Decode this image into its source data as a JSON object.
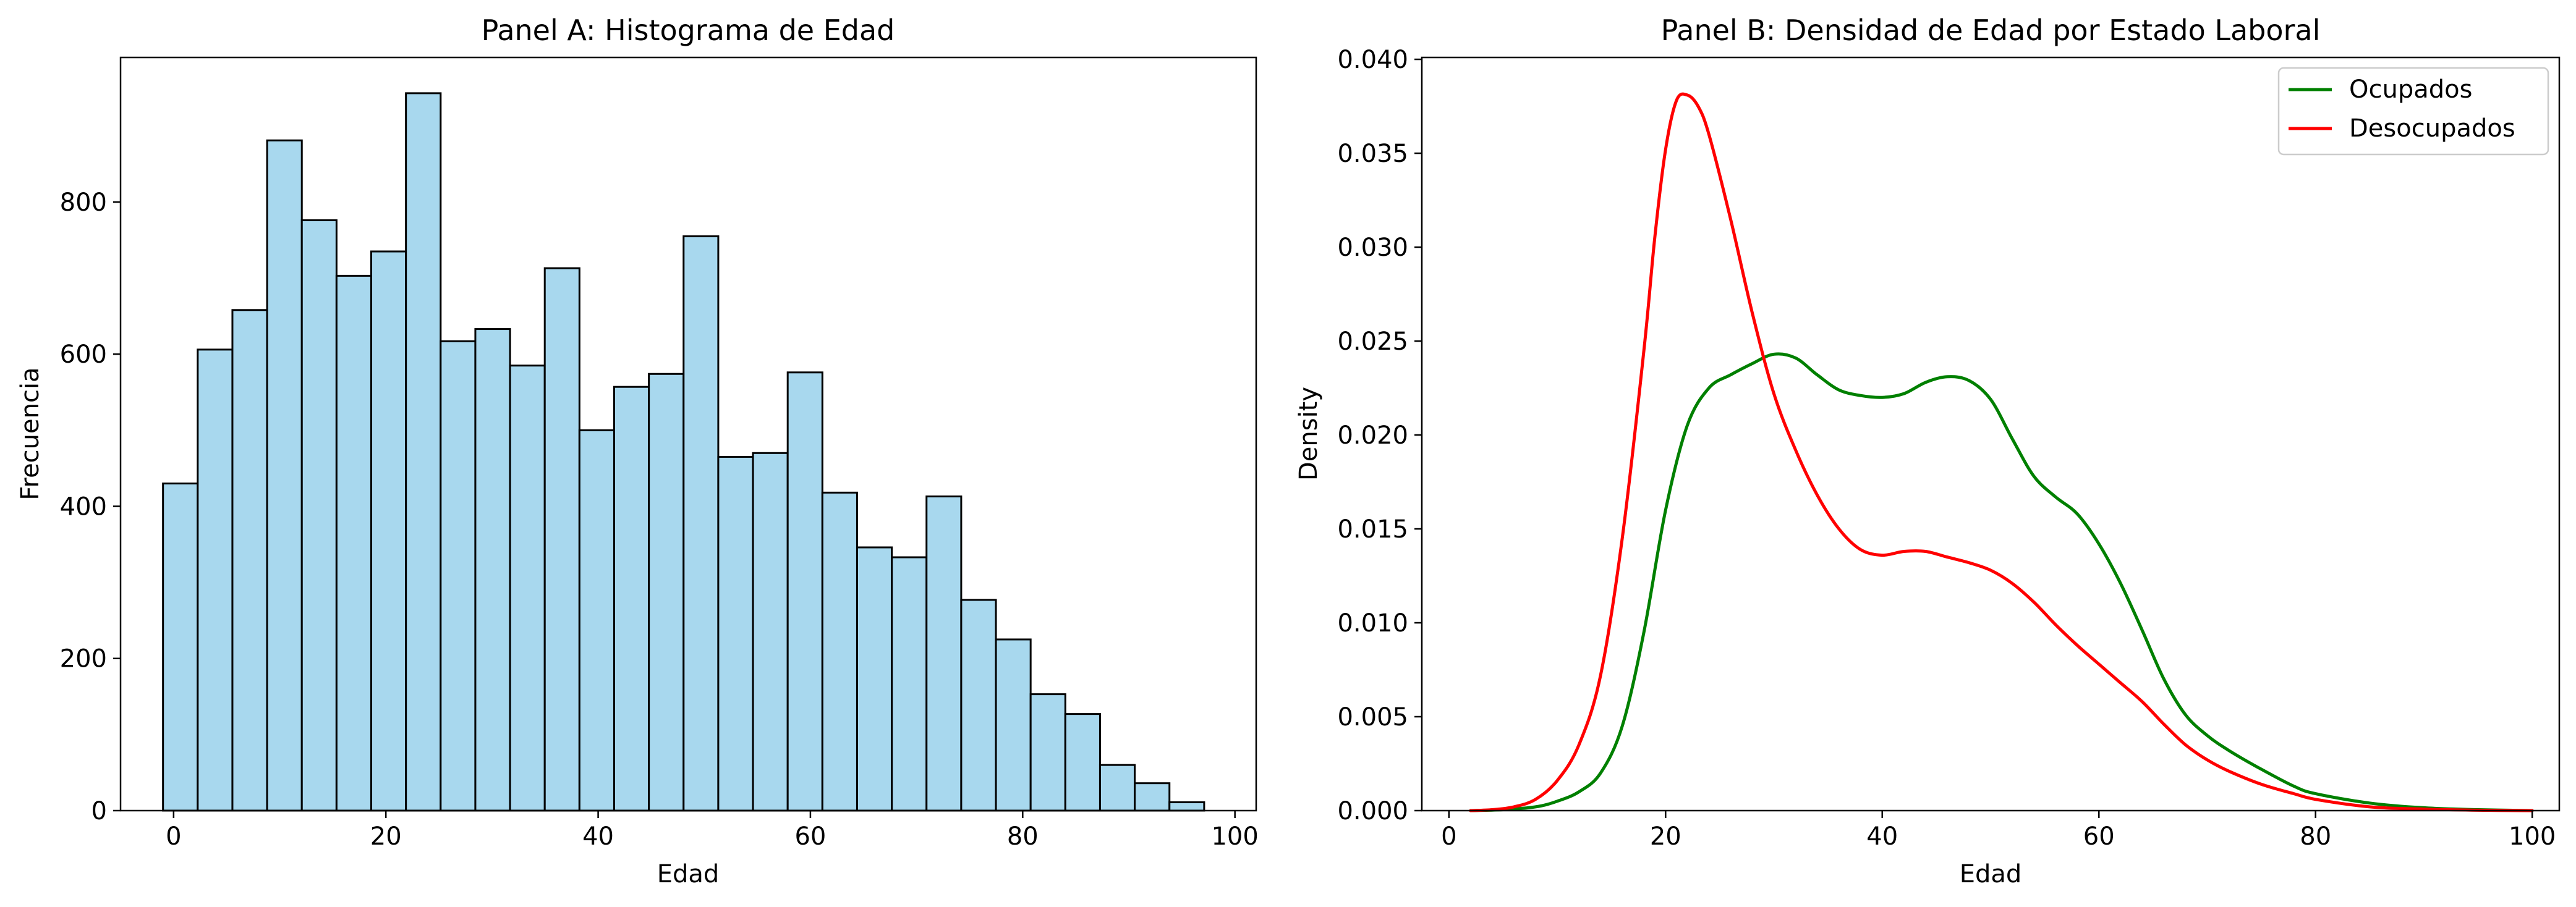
{
  "chart_data": [
    {
      "type": "bar",
      "title": "Panel A: Histograma de Edad",
      "xlabel": "Edad",
      "ylabel": "Frecuencia",
      "xlim": [
        -5,
        102
      ],
      "ylim": [
        0,
        990
      ],
      "xticks": [
        0,
        20,
        40,
        60,
        80,
        100
      ],
      "yticks": [
        0,
        200,
        400,
        600,
        800
      ],
      "grid": false,
      "bin_start": -1,
      "bin_width": 3.27,
      "bar_color": "#a8d8ee",
      "edge_color": "#000000",
      "values": [
        430,
        606,
        658,
        881,
        776,
        703,
        735,
        943,
        617,
        633,
        585,
        713,
        500,
        557,
        574,
        755,
        465,
        470,
        576,
        418,
        346,
        333,
        413,
        277,
        225,
        153,
        127,
        60,
        36,
        11
      ]
    },
    {
      "type": "line",
      "title": "Panel B: Densidad de Edad por Estado Laboral",
      "xlabel": "Edad",
      "ylabel": "Density",
      "xlim": [
        -2.5,
        102.5
      ],
      "ylim": [
        0,
        0.0401
      ],
      "xticks": [
        0,
        20,
        40,
        60,
        80,
        100
      ],
      "yticks": [
        "0.000",
        "0.005",
        "0.010",
        "0.015",
        "0.020",
        "0.025",
        "0.030",
        "0.035",
        "0.040"
      ],
      "grid": false,
      "legend_position": "top-right",
      "series": [
        {
          "name": "Ocupados",
          "color": "#008000",
          "points": [
            [
              2,
              0.0
            ],
            [
              5,
              5e-05
            ],
            [
              8,
              0.0002
            ],
            [
              10,
              0.0005
            ],
            [
              12,
              0.001
            ],
            [
              14,
              0.002
            ],
            [
              16,
              0.0045
            ],
            [
              18,
              0.0095
            ],
            [
              20,
              0.016
            ],
            [
              22,
              0.0205
            ],
            [
              24,
              0.0225
            ],
            [
              26,
              0.0232
            ],
            [
              28,
              0.0238
            ],
            [
              30,
              0.0243
            ],
            [
              32,
              0.0241
            ],
            [
              34,
              0.0232
            ],
            [
              36,
              0.0224
            ],
            [
              38,
              0.0221
            ],
            [
              40,
              0.022
            ],
            [
              42,
              0.0222
            ],
            [
              44,
              0.0228
            ],
            [
              46,
              0.0231
            ],
            [
              48,
              0.0229
            ],
            [
              50,
              0.0219
            ],
            [
              52,
              0.0198
            ],
            [
              54,
              0.0178
            ],
            [
              56,
              0.0167
            ],
            [
              58,
              0.0158
            ],
            [
              60,
              0.0142
            ],
            [
              62,
              0.0121
            ],
            [
              64,
              0.0096
            ],
            [
              66,
              0.007
            ],
            [
              68,
              0.0051
            ],
            [
              70,
              0.004
            ],
            [
              72,
              0.0032
            ],
            [
              75,
              0.0022
            ],
            [
              78,
              0.0013
            ],
            [
              80,
              0.0009
            ],
            [
              85,
              0.0004
            ],
            [
              90,
              0.00015
            ],
            [
              95,
              5e-05
            ],
            [
              100,
              0.0
            ]
          ]
        },
        {
          "name": "Desocupados",
          "color": "#ff0000",
          "points": [
            [
              2,
              0.0
            ],
            [
              4,
              5e-05
            ],
            [
              6,
              0.0002
            ],
            [
              8,
              0.0006
            ],
            [
              10,
              0.0016
            ],
            [
              12,
              0.0035
            ],
            [
              14,
              0.0072
            ],
            [
              16,
              0.0145
            ],
            [
              18,
              0.0245
            ],
            [
              19,
              0.0305
            ],
            [
              20,
              0.0352
            ],
            [
              21,
              0.0378
            ],
            [
              22,
              0.0381
            ],
            [
              23,
              0.0375
            ],
            [
              24,
              0.036
            ],
            [
              26,
              0.0315
            ],
            [
              28,
              0.0265
            ],
            [
              30,
              0.0222
            ],
            [
              32,
              0.0192
            ],
            [
              34,
              0.0168
            ],
            [
              36,
              0.015
            ],
            [
              38,
              0.0139
            ],
            [
              40,
              0.0136
            ],
            [
              42,
              0.0138
            ],
            [
              44,
              0.0138
            ],
            [
              46,
              0.0135
            ],
            [
              48,
              0.0132
            ],
            [
              50,
              0.0128
            ],
            [
              52,
              0.0121
            ],
            [
              54,
              0.0111
            ],
            [
              56,
              0.0099
            ],
            [
              58,
              0.0088
            ],
            [
              60,
              0.0078
            ],
            [
              62,
              0.0068
            ],
            [
              64,
              0.0058
            ],
            [
              66,
              0.0046
            ],
            [
              68,
              0.0035
            ],
            [
              70,
              0.0027
            ],
            [
              72,
              0.0021
            ],
            [
              75,
              0.0014
            ],
            [
              78,
              0.0009
            ],
            [
              80,
              0.0006
            ],
            [
              85,
              0.0002
            ],
            [
              90,
              8e-05
            ],
            [
              95,
              2e-05
            ],
            [
              100,
              0.0
            ]
          ]
        }
      ]
    }
  ]
}
